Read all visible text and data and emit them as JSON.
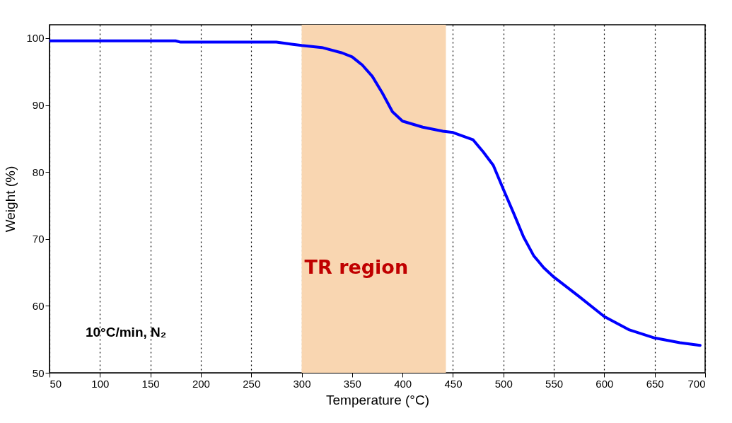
{
  "chart_data": {
    "type": "line",
    "xlabel": "Temperature (°C)",
    "ylabel": "Weight (%)",
    "x": [
      50,
      100,
      150,
      175,
      180,
      200,
      250,
      275,
      290,
      300,
      320,
      340,
      350,
      360,
      370,
      380,
      390,
      400,
      420,
      440,
      450,
      470,
      480,
      490,
      500,
      510,
      520,
      530,
      540,
      550,
      575,
      600,
      625,
      650,
      675,
      695
    ],
    "series": [
      {
        "color": "#0000ff",
        "values": [
          99.6,
          99.6,
          99.6,
          99.6,
          99.4,
          99.4,
          99.4,
          99.4,
          99.1,
          98.9,
          98.6,
          97.8,
          97.2,
          96.0,
          94.3,
          91.8,
          89.0,
          87.6,
          86.7,
          86.1,
          85.9,
          84.8,
          83.0,
          81.0,
          77.4,
          73.9,
          70.3,
          67.5,
          65.7,
          64.3,
          61.4,
          58.4,
          56.4,
          55.2,
          54.5,
          54.1
        ]
      }
    ],
    "xlim": [
      50,
      700
    ],
    "xticks": [
      50,
      100,
      150,
      200,
      250,
      300,
      350,
      400,
      450,
      500,
      550,
      600,
      650,
      700
    ],
    "ylim": [
      50,
      102
    ],
    "yticks": [
      50,
      60,
      70,
      80,
      90,
      100
    ],
    "grid": "x",
    "marker": "none",
    "line_style": "solid",
    "bands": [
      {
        "axis": "x",
        "from": 300,
        "to": 443,
        "label": "TR region",
        "color": "#f9d6b1"
      }
    ],
    "annotations": [
      "10°C/min, N₂"
    ]
  }
}
